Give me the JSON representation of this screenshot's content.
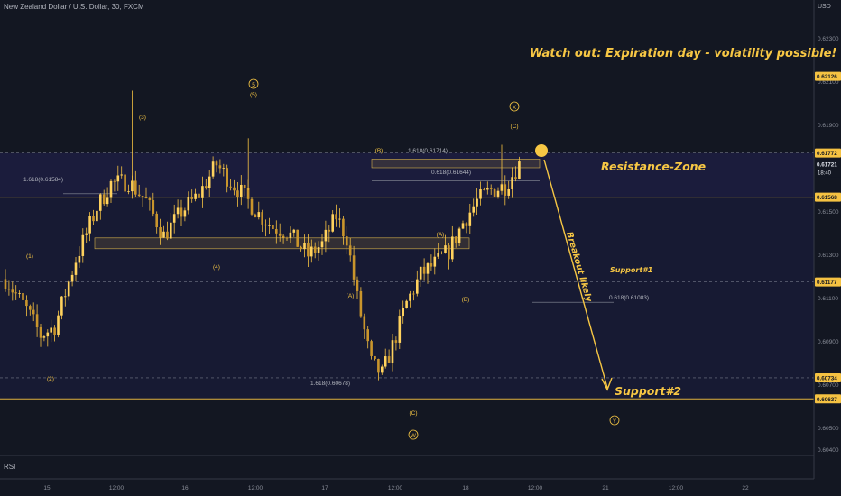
{
  "header": {
    "symbol_title": "New Zealand Dollar / U.S. Dollar, 30, FXCM",
    "price_unit": "USD"
  },
  "indicator_label": "RSI",
  "colors": {
    "background": "#131722",
    "candle": "#f5c242",
    "zone_fill": "#1b1c3c",
    "level_line": "#f5c242",
    "accent_label": "#f7c744",
    "axis_text": "#8a8e99"
  },
  "chart_data": {
    "type": "candlestick",
    "x_ticks": [
      "15",
      "12:00",
      "16",
      "12:00",
      "17",
      "12:00",
      "18",
      "12:00",
      "21",
      "12:00",
      "22"
    ],
    "y_ticks": [
      0.623,
      0.621,
      0.619,
      0.617,
      0.615,
      0.613,
      0.611,
      0.609,
      0.607,
      0.605,
      0.604
    ],
    "y_range": [
      0.6038,
      0.6242
    ],
    "price_badges": [
      {
        "label": "0.62126",
        "value": 0.62126
      },
      {
        "label": "0.61772",
        "value": 0.61772
      },
      {
        "label": "0.61721",
        "value": 0.61721,
        "sub": "18:40"
      },
      {
        "label": "0.61568",
        "value": 0.61568
      },
      {
        "label": "0.61177",
        "value": 0.61177
      },
      {
        "label": "0.60734",
        "value": 0.60734
      },
      {
        "label": "0.60637",
        "value": 0.60637
      }
    ],
    "fib_labels": [
      {
        "text": "1.618(0.61584)",
        "value": 0.61584
      },
      {
        "text": "1.618(0.61714)",
        "value": 0.61714
      },
      {
        "text": "0.618(0.61644)",
        "value": 0.61644
      },
      {
        "text": "0.618(0.61083)",
        "value": 0.61083
      },
      {
        "text": "1.618(0.60678)",
        "value": 0.60678
      }
    ],
    "wave_labels": [
      "(1)",
      "(2)",
      "(3)",
      "(4)",
      "5",
      "(5)",
      "(A)",
      "(B)",
      "(C)",
      "(A)",
      "(B)",
      "(C)",
      "X",
      "W",
      "Y"
    ],
    "annotations": {
      "headline": "Watch out: Expiration day - volatility possible!",
      "resistance": "Resistance-Zone",
      "support1": "Support#1",
      "support2": "Support#2",
      "breakout": "Breakout likely"
    },
    "anchors": [
      {
        "t": 0,
        "p": 0.6119
      },
      {
        "t": 6,
        "p": 0.6105
      },
      {
        "t": 10,
        "p": 0.6093
      },
      {
        "t": 14,
        "p": 0.6097
      },
      {
        "t": 20,
        "p": 0.6128
      },
      {
        "t": 26,
        "p": 0.6152
      },
      {
        "t": 30,
        "p": 0.6163
      },
      {
        "t": 35,
        "p": 0.6164
      },
      {
        "t": 40,
        "p": 0.6155
      },
      {
        "t": 45,
        "p": 0.6139
      },
      {
        "t": 50,
        "p": 0.615
      },
      {
        "t": 55,
        "p": 0.6158
      },
      {
        "t": 60,
        "p": 0.6172
      },
      {
        "t": 64,
        "p": 0.6164
      },
      {
        "t": 68,
        "p": 0.6157
      },
      {
        "t": 72,
        "p": 0.6149
      },
      {
        "t": 76,
        "p": 0.6143
      },
      {
        "t": 80,
        "p": 0.6141
      },
      {
        "t": 86,
        "p": 0.613
      },
      {
        "t": 90,
        "p": 0.6135
      },
      {
        "t": 94,
        "p": 0.6148
      },
      {
        "t": 97,
        "p": 0.6138
      },
      {
        "t": 100,
        "p": 0.611
      },
      {
        "t": 104,
        "p": 0.608
      },
      {
        "t": 107,
        "p": 0.6075
      },
      {
        "t": 110,
        "p": 0.6088
      },
      {
        "t": 114,
        "p": 0.6108
      },
      {
        "t": 118,
        "p": 0.6121
      },
      {
        "t": 122,
        "p": 0.6126
      },
      {
        "t": 126,
        "p": 0.6132
      },
      {
        "t": 130,
        "p": 0.6145
      },
      {
        "t": 134,
        "p": 0.6155
      },
      {
        "t": 138,
        "p": 0.616
      },
      {
        "t": 142,
        "p": 0.6162
      },
      {
        "t": 146,
        "p": 0.6172
      }
    ]
  }
}
